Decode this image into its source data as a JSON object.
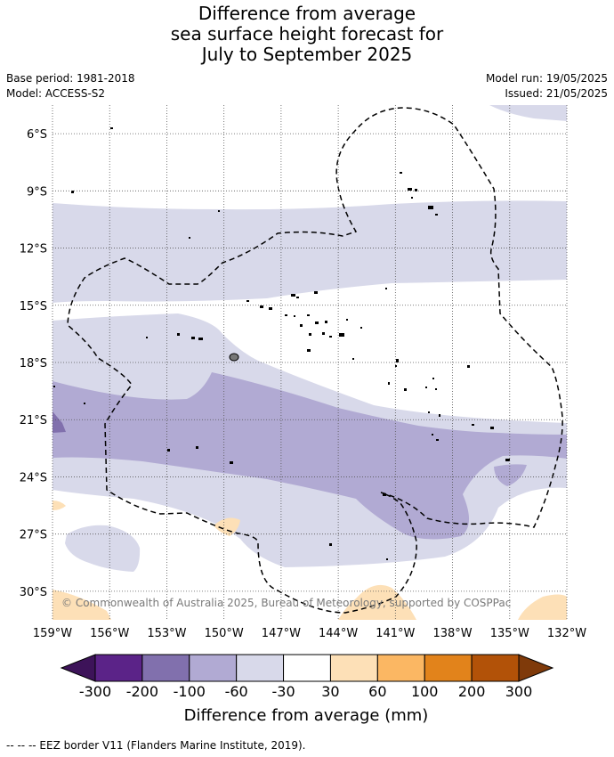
{
  "title": {
    "line1": "Difference from average",
    "line2": "sea surface height forecast for",
    "line3": "July to September 2025"
  },
  "meta": {
    "base_period": "Base period: 1981-2018",
    "model": "Model: ACCESS-S2",
    "model_run": "Model run: 19/05/2025",
    "issued": "Issued: 21/05/2025"
  },
  "map": {
    "lon_range": [
      -159,
      -132
    ],
    "lat_range": [
      -31.5,
      -4.5
    ],
    "lon_ticks": [
      "159°W",
      "156°W",
      "153°W",
      "150°W",
      "147°W",
      "144°W",
      "141°W",
      "138°W",
      "135°W",
      "132°W"
    ],
    "lat_ticks": [
      "6°S",
      "9°S",
      "12°S",
      "15°S",
      "18°S",
      "21°S",
      "24°S",
      "27°S",
      "30°S"
    ],
    "copyright": "© Commonwealth of Australia 2025, Bureau of Meteorology, supported by COSPPac",
    "gridlines": true
  },
  "colorbar": {
    "label": "Difference from average (mm)",
    "ticks": [
      "-300",
      "-200",
      "-100",
      "-60",
      "-30",
      "30",
      "60",
      "100",
      "200",
      "300"
    ],
    "colors": [
      "#3d1359",
      "#5b2388",
      "#8170ad",
      "#b1aad3",
      "#d8d9ea",
      "#ffffff",
      "#fde0b7",
      "#fbb763",
      "#e2831b",
      "#b25208",
      "#7f3a0a"
    ]
  },
  "footer": {
    "legend_text": "--  --  -- EEZ border V11 (Flanders Marine Institute, 2019)."
  }
}
